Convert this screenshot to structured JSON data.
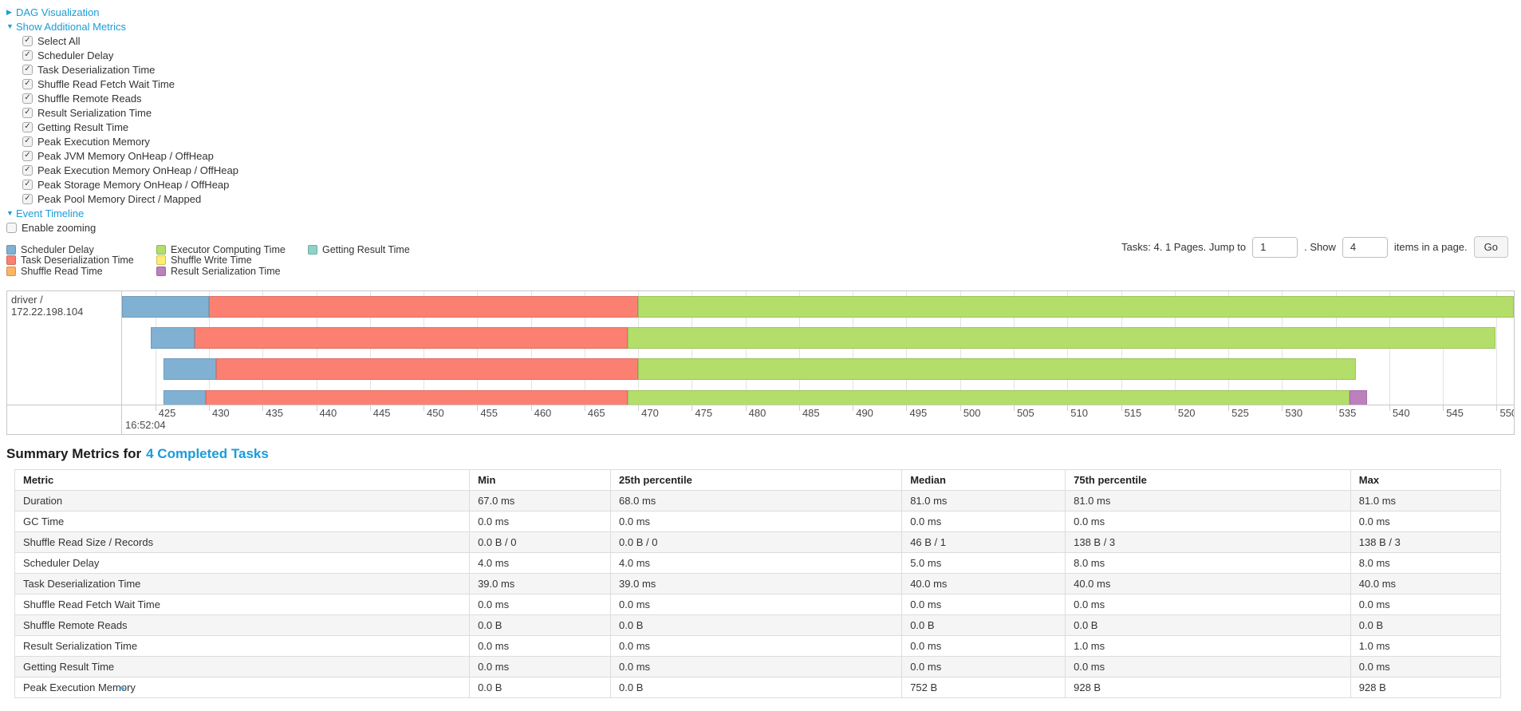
{
  "colors": {
    "link": "#1a9cd8",
    "grid": "#e2e2e2",
    "border": "#c8c8c8"
  },
  "toggles": {
    "dag": {
      "label": "DAG Visualization",
      "arrow": "▶"
    },
    "metrics": {
      "label": "Show Additional Metrics",
      "arrow": "▼"
    },
    "timeline": {
      "label": "Event Timeline",
      "arrow": "▼"
    }
  },
  "metric_checkboxes": [
    {
      "label": "Select All",
      "checked": true
    },
    {
      "label": "Scheduler Delay",
      "checked": true
    },
    {
      "label": "Task Deserialization Time",
      "checked": true
    },
    {
      "label": "Shuffle Read Fetch Wait Time",
      "checked": true
    },
    {
      "label": "Shuffle Remote Reads",
      "checked": true
    },
    {
      "label": "Result Serialization Time",
      "checked": true
    },
    {
      "label": "Getting Result Time",
      "checked": true
    },
    {
      "label": "Peak Execution Memory",
      "checked": true
    },
    {
      "label": "Peak JVM Memory OnHeap / OffHeap",
      "checked": true
    },
    {
      "label": "Peak Execution Memory OnHeap / OffHeap",
      "checked": true
    },
    {
      "label": "Peak Storage Memory OnHeap / OffHeap",
      "checked": true
    },
    {
      "label": "Peak Pool Memory Direct / Mapped",
      "checked": true
    }
  ],
  "enable_zooming": {
    "label": "Enable zooming",
    "checked": false
  },
  "legend": {
    "columns": [
      [
        {
          "label": "Scheduler Delay",
          "color": "#80B1D3"
        },
        {
          "label": "Task Deserialization Time",
          "color": "#FB8072"
        },
        {
          "label": "Shuffle Read Time",
          "color": "#FDB462"
        }
      ],
      [
        {
          "label": "Executor Computing Time",
          "color": "#B3DE69"
        },
        {
          "label": "Shuffle Write Time",
          "color": "#FFED6F"
        },
        {
          "label": "Result Serialization Time",
          "color": "#BC80BD"
        }
      ],
      [
        {
          "label": "Getting Result Time",
          "color": "#8DD3C7"
        }
      ]
    ]
  },
  "pagination": {
    "tasks_text": "Tasks: 4. 1 Pages. Jump to",
    "jump_value": "1",
    "show_label": ". Show",
    "show_value": "4",
    "items_text": "items in a page.",
    "go_label": "Go"
  },
  "chart_data": {
    "type": "timeline",
    "row_label": "driver / 172.22.198.104",
    "major_label": "16:52:04",
    "x_domain_ms": [
      421.9,
      551.6
    ],
    "ticks_ms": [
      425,
      430,
      435,
      440,
      445,
      450,
      455,
      460,
      465,
      470,
      475,
      480,
      485,
      490,
      495,
      500,
      505,
      510,
      515,
      520,
      525,
      530,
      535,
      540,
      545,
      550
    ],
    "segment_colors": {
      "scheduler_delay": "#80B1D3",
      "task_deserialization": "#FB8072",
      "shuffle_read": "#FDB462",
      "executor_computing": "#B3DE69",
      "shuffle_write": "#FFED6F",
      "result_serialization": "#BC80BD",
      "getting_result": "#8DD3C7"
    },
    "tasks": [
      {
        "segments": [
          {
            "type": "scheduler_delay",
            "start": 421.9,
            "end": 430.0
          },
          {
            "type": "task_deserialization",
            "start": 430.0,
            "end": 470.0
          },
          {
            "type": "executor_computing",
            "start": 470.0,
            "end": 551.6
          }
        ]
      },
      {
        "segments": [
          {
            "type": "scheduler_delay",
            "start": 424.6,
            "end": 428.7
          },
          {
            "type": "task_deserialization",
            "start": 428.7,
            "end": 469.0
          },
          {
            "type": "executor_computing",
            "start": 469.0,
            "end": 549.9
          }
        ]
      },
      {
        "segments": [
          {
            "type": "scheduler_delay",
            "start": 425.8,
            "end": 430.7
          },
          {
            "type": "task_deserialization",
            "start": 430.7,
            "end": 470.0
          },
          {
            "type": "executor_computing",
            "start": 470.0,
            "end": 536.9
          }
        ]
      },
      {
        "segments": [
          {
            "type": "scheduler_delay",
            "start": 425.8,
            "end": 429.7
          },
          {
            "type": "task_deserialization",
            "start": 429.7,
            "end": 469.0
          },
          {
            "type": "executor_computing",
            "start": 469.0,
            "end": 536.3
          },
          {
            "type": "result_serialization",
            "start": 536.3,
            "end": 537.9
          }
        ]
      }
    ]
  },
  "summary": {
    "title_prefix": "Summary Metrics for",
    "title_link": "4 Completed Tasks"
  },
  "table": {
    "headers": [
      "Metric",
      "Min",
      "25th percentile",
      "Median",
      "75th percentile",
      "Max"
    ],
    "col_widths": [
      "30.6%",
      "9.5%",
      "19.6%",
      "11.0%",
      "19.2%",
      "10.1%"
    ],
    "rows": [
      [
        "Duration",
        "67.0 ms",
        "68.0 ms",
        "81.0 ms",
        "81.0 ms",
        "81.0 ms"
      ],
      [
        "GC Time",
        "0.0 ms",
        "0.0 ms",
        "0.0 ms",
        "0.0 ms",
        "0.0 ms"
      ],
      [
        "Shuffle Read Size / Records",
        "0.0 B / 0",
        "0.0 B / 0",
        "46 B / 1",
        "138 B / 3",
        "138 B / 3"
      ],
      [
        "Scheduler Delay",
        "4.0 ms",
        "4.0 ms",
        "5.0 ms",
        "8.0 ms",
        "8.0 ms"
      ],
      [
        "Task Deserialization Time",
        "39.0 ms",
        "39.0 ms",
        "40.0 ms",
        "40.0 ms",
        "40.0 ms"
      ],
      [
        "Shuffle Read Fetch Wait Time",
        "0.0 ms",
        "0.0 ms",
        "0.0 ms",
        "0.0 ms",
        "0.0 ms"
      ],
      [
        "Shuffle Remote Reads",
        "0.0 B",
        "0.0 B",
        "0.0 B",
        "0.0 B",
        "0.0 B"
      ],
      [
        "Result Serialization Time",
        "0.0 ms",
        "0.0 ms",
        "0.0 ms",
        "1.0 ms",
        "1.0 ms"
      ],
      [
        "Getting Result Time",
        "0.0 ms",
        "0.0 ms",
        "0.0 ms",
        "0.0 ms",
        "0.0 ms"
      ],
      [
        "Peak Execution Memory",
        "0.0 B",
        "0.0 B",
        "752 B",
        "928 B",
        "928 B"
      ]
    ]
  }
}
